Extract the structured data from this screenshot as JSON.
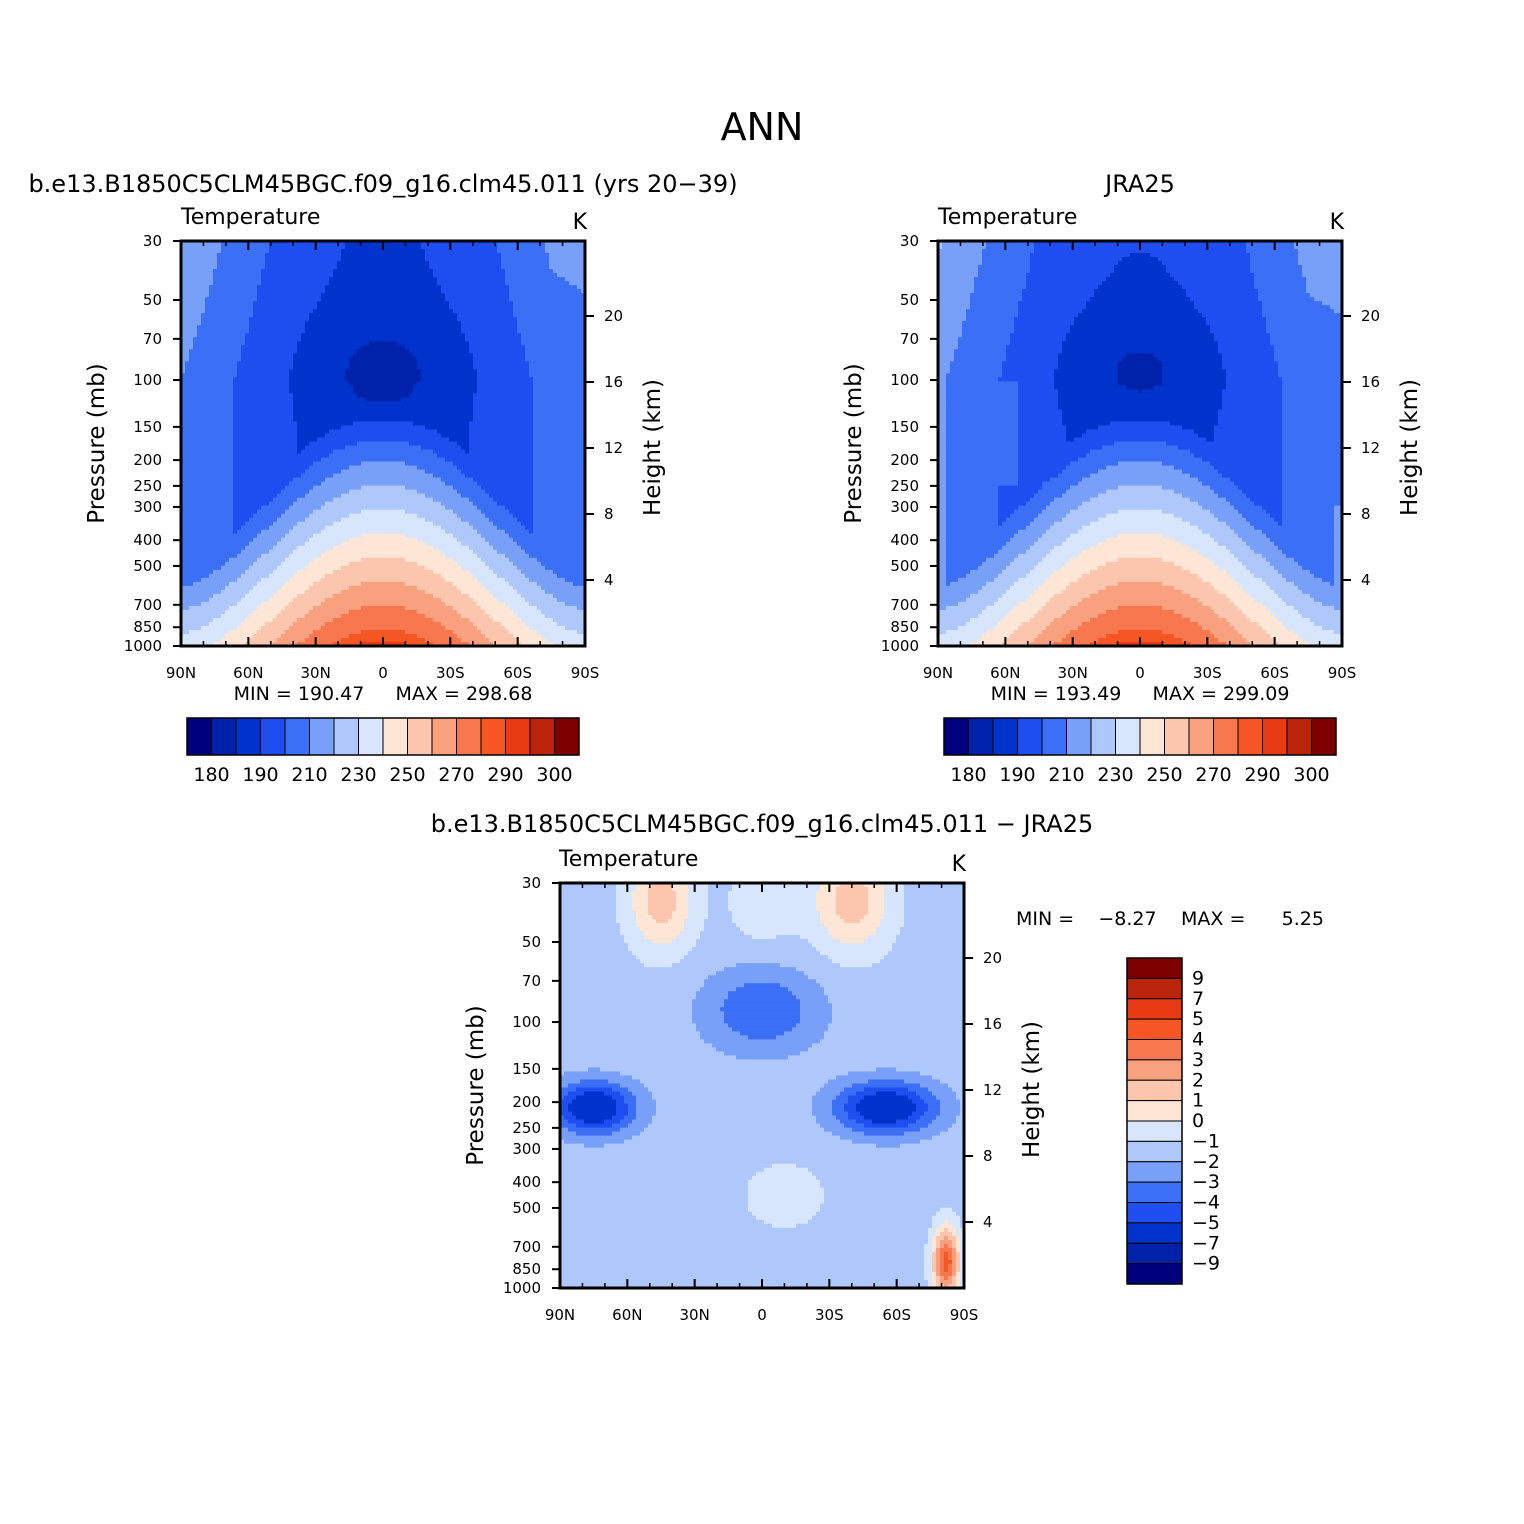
{
  "figure": {
    "title": "ANN"
  },
  "colors": {
    "temp_levels": [
      "#00007f",
      "#0022aa",
      "#0033cc",
      "#1e4ef0",
      "#3b6ff5",
      "#78a0f8",
      "#aec8fb",
      "#d7e6fc",
      "#fde6d6",
      "#fbc6ad",
      "#f9a07e",
      "#f7774f",
      "#f65623",
      "#e83a13",
      "#b9240a",
      "#7f0000"
    ],
    "diff_levels": [
      "#00007f",
      "#0022aa",
      "#0033cc",
      "#1e4ef0",
      "#3b6ff5",
      "#78a0f8",
      "#aec8fb",
      "#d7e6fc",
      "#fde6d6",
      "#fbc6ad",
      "#f9a07e",
      "#f7774f",
      "#f65623",
      "#e83a13",
      "#b9240a",
      "#7f0000"
    ]
  },
  "chart_data": [
    {
      "type": "heatmap",
      "title": "b.e13.B1850C5CLM45BGC.f09_g16.clm45.011 (yrs 20−39)",
      "subtitle_left": "Temperature",
      "subtitle_right": "K",
      "xlabel": "",
      "ylabel": "Pressure (mb)",
      "ylabel_right": "Height (km)",
      "x_tick_labels": [
        "90N",
        "60N",
        "30N",
        "0",
        "30S",
        "60S",
        "90S"
      ],
      "y_tick_labels": [
        "30",
        "50",
        "70",
        "100",
        "150",
        "200",
        "250",
        "300",
        "400",
        "500",
        "700",
        "850",
        "1000"
      ],
      "y_right_tick_labels": [
        "20",
        "16",
        "12",
        "8",
        "4"
      ],
      "min_label": "MIN = 190.47",
      "max_label": "MAX = 298.68",
      "min": 190.47,
      "max": 298.68,
      "colorbar_labels": [
        "180",
        "190",
        "210",
        "230",
        "250",
        "270",
        "290",
        "300"
      ],
      "levels": [
        180,
        190,
        200,
        210,
        220,
        230,
        240,
        250,
        260,
        270,
        280,
        290,
        295,
        300,
        305
      ]
    },
    {
      "type": "heatmap",
      "title": "JRA25",
      "subtitle_left": "Temperature",
      "subtitle_right": "K",
      "xlabel": "",
      "ylabel": "Pressure (mb)",
      "ylabel_right": "Height (km)",
      "x_tick_labels": [
        "90N",
        "60N",
        "30N",
        "0",
        "30S",
        "60S",
        "90S"
      ],
      "y_tick_labels": [
        "30",
        "50",
        "70",
        "100",
        "150",
        "200",
        "250",
        "300",
        "400",
        "500",
        "700",
        "850",
        "1000"
      ],
      "y_right_tick_labels": [
        "20",
        "16",
        "12",
        "8",
        "4"
      ],
      "min_label": "MIN = 193.49",
      "max_label": "MAX = 299.09",
      "min": 193.49,
      "max": 299.09,
      "colorbar_labels": [
        "180",
        "190",
        "210",
        "230",
        "250",
        "270",
        "290",
        "300"
      ],
      "levels": [
        180,
        190,
        200,
        210,
        220,
        230,
        240,
        250,
        260,
        270,
        280,
        290,
        295,
        300,
        305
      ]
    },
    {
      "type": "heatmap",
      "title": "b.e13.B1850C5CLM45BGC.f09_g16.clm45.011 − JRA25",
      "subtitle_left": "Temperature",
      "subtitle_right": "K",
      "xlabel": "",
      "ylabel": "Pressure (mb)",
      "ylabel_right": "Height (km)",
      "x_tick_labels": [
        "90N",
        "60N",
        "30N",
        "0",
        "30S",
        "60S",
        "90S"
      ],
      "y_tick_labels": [
        "30",
        "50",
        "70",
        "100",
        "150",
        "200",
        "250",
        "300",
        "400",
        "500",
        "700",
        "850",
        "1000"
      ],
      "y_right_tick_labels": [
        "20",
        "16",
        "12",
        "8",
        "4"
      ],
      "min_label": "MIN =    −8.27",
      "max_label": "MAX =      5.25",
      "min": -8.27,
      "max": 5.25,
      "colorbar_labels": [
        "9",
        "7",
        "5",
        "4",
        "3",
        "2",
        "1",
        "0",
        "−1",
        "−2",
        "−3",
        "−4",
        "−5",
        "−7",
        "−9"
      ],
      "levels": [
        -9,
        -7,
        -5,
        -4,
        -3,
        -2,
        -1,
        0,
        1,
        2,
        3,
        4,
        5,
        7,
        9
      ]
    }
  ]
}
